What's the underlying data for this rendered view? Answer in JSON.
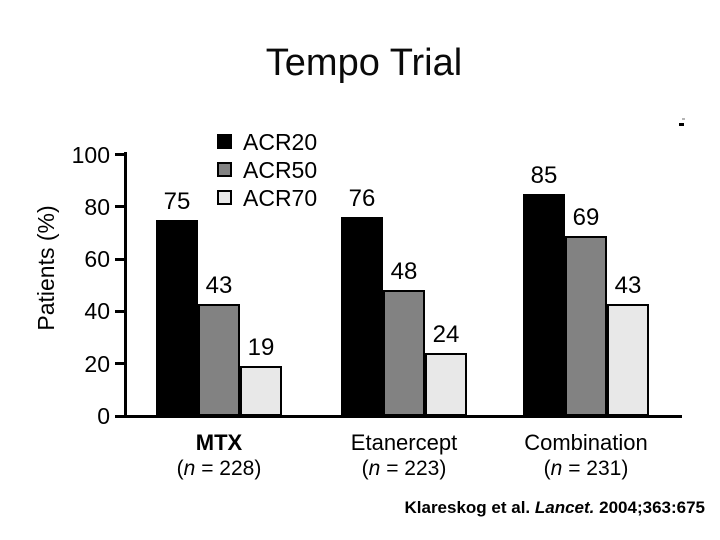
{
  "slide": {
    "title": "Tempo Trial"
  },
  "chart_data": {
    "type": "bar",
    "title": "Tempo Trial",
    "xlabel": "",
    "ylabel": "Patients (%)",
    "ylim": [
      0,
      100
    ],
    "yticks": [
      0,
      20,
      40,
      60,
      80,
      100
    ],
    "grid": false,
    "legend_position": "upper-left-inside",
    "categories": [
      {
        "label": "MTX",
        "n": "228",
        "bold": true
      },
      {
        "label": "Etanercept",
        "n": "223",
        "bold": false
      },
      {
        "label": "Combination",
        "n": "231",
        "bold": false
      }
    ],
    "series": [
      {
        "name": "ACR20",
        "color": "#000000",
        "values": [
          75,
          76,
          85
        ]
      },
      {
        "name": "ACR50",
        "color": "#828282",
        "values": [
          43,
          48,
          69
        ]
      },
      {
        "name": "ACR70",
        "color": "#e8e8e8",
        "values": [
          19,
          24,
          43
        ]
      }
    ]
  },
  "citation": {
    "prefix": "Klareskog et al. ",
    "journal": "Lancet.",
    "suffix": " 2004;363:675"
  }
}
